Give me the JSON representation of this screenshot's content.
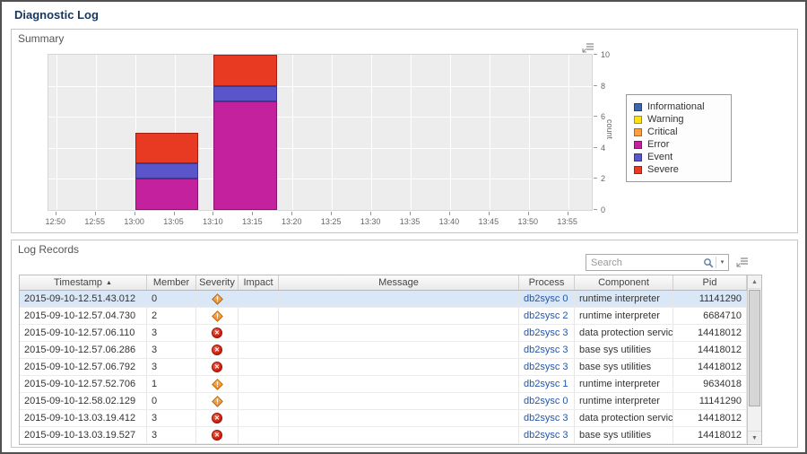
{
  "page": {
    "title": "Diagnostic Log"
  },
  "summary": {
    "title": "Summary"
  },
  "chart_data": {
    "type": "stacked_bar",
    "title": "",
    "xlabel": "",
    "ylabel": "count",
    "ylim": [
      0,
      10
    ],
    "yticks": [
      0,
      2,
      4,
      6,
      8,
      10
    ],
    "xticks": [
      "12:50",
      "12:55",
      "13:00",
      "13:05",
      "13:10",
      "13:15",
      "13:20",
      "13:25",
      "13:30",
      "13:35",
      "13:40",
      "13:45",
      "13:50",
      "13:55"
    ],
    "x_domain_minutes": [
      769,
      838
    ],
    "grid": true,
    "legend_position": "right",
    "series_order": [
      "Error",
      "Event",
      "Severe"
    ],
    "bars": [
      {
        "x_start": "13:00",
        "x_end": "13:08",
        "segments": {
          "Error": 2,
          "Event": 1,
          "Severe": 2
        }
      },
      {
        "x_start": "13:10",
        "x_end": "13:18",
        "segments": {
          "Error": 7,
          "Event": 1,
          "Severe": 2
        }
      }
    ],
    "segment_borders": {
      "Error": "#8a1470",
      "Event": "#3b3793",
      "Severe": "#a31f10"
    },
    "legend": [
      {
        "label": "Informational",
        "color": "#3a67ad"
      },
      {
        "label": "Warning",
        "color": "#ffe11a"
      },
      {
        "label": "Critical",
        "color": "#ffa03c"
      },
      {
        "label": "Error",
        "color": "#c4219f"
      },
      {
        "label": "Event",
        "color": "#5a55cb"
      },
      {
        "label": "Severe",
        "color": "#e83a23"
      }
    ]
  },
  "log_records": {
    "title": "Log Records",
    "search_placeholder": "Search",
    "sort_column": "Timestamp",
    "sort_dir": "asc",
    "columns": [
      "Timestamp",
      "Member",
      "Severity",
      "Impact",
      "Message",
      "Process",
      "Component",
      "Pid"
    ],
    "rows": [
      {
        "timestamp": "2015-09-10-12.51.43.012",
        "member": "0",
        "severity": "warning",
        "impact": "",
        "message": "",
        "process": "db2sysc 0",
        "component": "runtime interpreter",
        "pid": "11141290",
        "selected": true
      },
      {
        "timestamp": "2015-09-10-12.57.04.730",
        "member": "2",
        "severity": "warning",
        "impact": "",
        "message": "",
        "process": "db2sysc 2",
        "component": "runtime interpreter",
        "pid": "6684710",
        "selected": false
      },
      {
        "timestamp": "2015-09-10-12.57.06.110",
        "member": "3",
        "severity": "error",
        "impact": "",
        "message": "",
        "process": "db2sysc 3",
        "component": "data protection services",
        "pid": "14418012",
        "selected": false
      },
      {
        "timestamp": "2015-09-10-12.57.06.286",
        "member": "3",
        "severity": "error",
        "impact": "",
        "message": "",
        "process": "db2sysc 3",
        "component": "base sys utilities",
        "pid": "14418012",
        "selected": false
      },
      {
        "timestamp": "2015-09-10-12.57.06.792",
        "member": "3",
        "severity": "error",
        "impact": "",
        "message": "",
        "process": "db2sysc 3",
        "component": "base sys utilities",
        "pid": "14418012",
        "selected": false
      },
      {
        "timestamp": "2015-09-10-12.57.52.706",
        "member": "1",
        "severity": "warning",
        "impact": "",
        "message": "",
        "process": "db2sysc 1",
        "component": "runtime interpreter",
        "pid": "9634018",
        "selected": false
      },
      {
        "timestamp": "2015-09-10-12.58.02.129",
        "member": "0",
        "severity": "warning",
        "impact": "",
        "message": "",
        "process": "db2sysc 0",
        "component": "runtime interpreter",
        "pid": "11141290",
        "selected": false
      },
      {
        "timestamp": "2015-09-10-13.03.19.412",
        "member": "3",
        "severity": "error",
        "impact": "",
        "message": "",
        "process": "db2sysc 3",
        "component": "data protection services",
        "pid": "14418012",
        "selected": false
      },
      {
        "timestamp": "2015-09-10-13.03.19.527",
        "member": "3",
        "severity": "error",
        "impact": "",
        "message": "",
        "process": "db2sysc 3",
        "component": "base sys utilities",
        "pid": "14418012",
        "selected": false
      }
    ]
  }
}
